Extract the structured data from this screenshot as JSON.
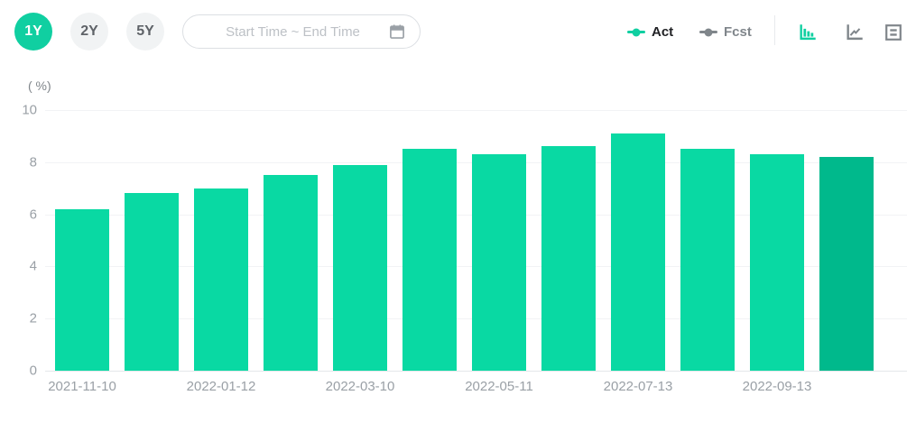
{
  "header": {
    "range_buttons": [
      {
        "label": "1Y",
        "active": true
      },
      {
        "label": "2Y",
        "active": false
      },
      {
        "label": "5Y",
        "active": false
      }
    ],
    "date_input": {
      "placeholder": "Start Time ~ End Time",
      "value": ""
    },
    "legend": [
      {
        "label": "Act",
        "color": "#10cfa1"
      },
      {
        "label": "Fcst",
        "color": "#80868b"
      }
    ],
    "view_toggles": [
      {
        "name": "bar-chart-view",
        "active": true
      },
      {
        "name": "line-chart-view",
        "active": false
      },
      {
        "name": "table-view",
        "active": false
      }
    ]
  },
  "colors": {
    "accent": "#10cfa1",
    "bar": "#09d9a3",
    "bar_last": "#00b98c",
    "grid": "#f2f3f5",
    "axis_text": "#9aa0a6",
    "muted": "#80868b",
    "border": "#dcdfe3",
    "chip_bg": "#f1f3f4"
  },
  "chart_data": {
    "type": "bar",
    "title": "",
    "ylabel": "( %)",
    "xlabel": "",
    "ylim": [
      0,
      10
    ],
    "yticks": [
      0,
      2,
      4,
      6,
      8,
      10
    ],
    "grid": true,
    "series_name": "Act",
    "values": [
      6.2,
      6.8,
      7.0,
      7.5,
      7.9,
      8.5,
      8.3,
      8.6,
      9.1,
      8.5,
      8.3,
      8.2
    ],
    "x_tick_labels": [
      "2021-11-10",
      "2022-01-12",
      "2022-03-10",
      "2022-05-11",
      "2022-07-13",
      "2022-09-13"
    ],
    "x_tick_every": 2,
    "highlight_last": true
  }
}
